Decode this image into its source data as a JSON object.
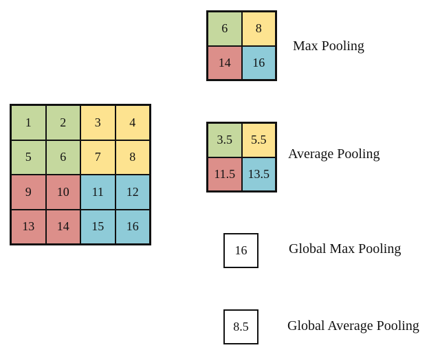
{
  "colors": {
    "green": "#c5d89e",
    "yellow": "#fde390",
    "red": "#dc8f8a",
    "blue": "#8ecbd8",
    "border": "#111111"
  },
  "input_grid": [
    {
      "value": "1",
      "color": "green"
    },
    {
      "value": "2",
      "color": "green"
    },
    {
      "value": "3",
      "color": "yellow"
    },
    {
      "value": "4",
      "color": "yellow"
    },
    {
      "value": "5",
      "color": "green"
    },
    {
      "value": "6",
      "color": "green"
    },
    {
      "value": "7",
      "color": "yellow"
    },
    {
      "value": "8",
      "color": "yellow"
    },
    {
      "value": "9",
      "color": "red"
    },
    {
      "value": "10",
      "color": "red"
    },
    {
      "value": "11",
      "color": "blue"
    },
    {
      "value": "12",
      "color": "blue"
    },
    {
      "value": "13",
      "color": "red"
    },
    {
      "value": "14",
      "color": "red"
    },
    {
      "value": "15",
      "color": "blue"
    },
    {
      "value": "16",
      "color": "blue"
    }
  ],
  "max_pooling": {
    "label": "Max Pooling",
    "cells": [
      {
        "value": "6",
        "color": "green"
      },
      {
        "value": "8",
        "color": "yellow"
      },
      {
        "value": "14",
        "color": "red"
      },
      {
        "value": "16",
        "color": "blue"
      }
    ]
  },
  "average_pooling": {
    "label": "Average Pooling",
    "cells": [
      {
        "value": "3.5",
        "color": "green"
      },
      {
        "value": "5.5",
        "color": "yellow"
      },
      {
        "value": "11.5",
        "color": "red"
      },
      {
        "value": "13.5",
        "color": "blue"
      }
    ]
  },
  "global_max_pooling": {
    "label": "Global Max Pooling",
    "value": "16"
  },
  "global_average_pooling": {
    "label": "Global Average Pooling",
    "value": "8.5"
  }
}
